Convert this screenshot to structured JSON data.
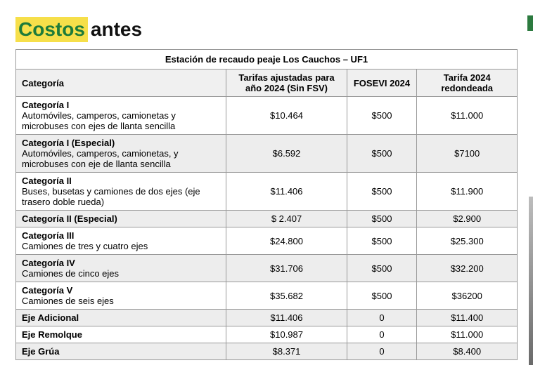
{
  "title": {
    "highlight_text": "Costos",
    "plain_text": " antes",
    "highlight_bg": "#f6df4a",
    "highlight_color": "#1d7b3a",
    "plain_color": "#111111",
    "fontsize": 28
  },
  "table": {
    "caption": "Estación de recaudo peaje Los Cauchos – UF1",
    "columns": [
      "Categoría",
      "Tarifas ajustadas para año 2024 (Sin FSV)",
      "FOSEVI 2024",
      "Tarifa 2024 redondeada"
    ],
    "rows": [
      {
        "name": "Categoría I",
        "desc": "Automóviles, camperos, camionetas y microbuses con ejes de llanta sencilla",
        "c1": "$10.464",
        "c2": "$500",
        "c3": "$11.000",
        "alt": false
      },
      {
        "name": "Categoría I (Especial)",
        "desc": "Automóviles, camperos, camionetas, y microbuses con eje de llanta sencilla",
        "c1": "$6.592",
        "c2": "$500",
        "c3": "$7100",
        "alt": true
      },
      {
        "name": "Categoría II",
        "desc": "Buses, busetas y camiones de dos ejes (eje trasero doble rueda)",
        "c1": "$11.406",
        "c2": "$500",
        "c3": "$11.900",
        "alt": false
      },
      {
        "name": "Categoría II (Especial)",
        "desc": "",
        "c1": "$ 2.407",
        "c2": "$500",
        "c3": "$2.900",
        "alt": true
      },
      {
        "name": "Categoría III",
        "desc": "Camiones de tres y cuatro ejes",
        "c1": "$24.800",
        "c2": "$500",
        "c3": "$25.300",
        "alt": false
      },
      {
        "name": "Categoría IV",
        "desc": "Camiones de cinco ejes",
        "c1": "$31.706",
        "c2": "$500",
        "c3": "$32.200",
        "alt": true
      },
      {
        "name": "Categoría V",
        "desc": "Camiones de seis ejes",
        "c1": "$35.682",
        "c2": "$500",
        "c3": "$36200",
        "alt": false
      },
      {
        "name": "Eje Adicional",
        "desc": "",
        "c1": "$11.406",
        "c2": "0",
        "c3": "$11.400",
        "alt": true
      },
      {
        "name": "Eje Remolque",
        "desc": "",
        "c1": "$10.987",
        "c2": "0",
        "c3": "$11.000",
        "alt": false
      },
      {
        "name": "Eje Grúa",
        "desc": "",
        "c1": "$8.371",
        "c2": "0",
        "c3": "$8.400",
        "alt": true
      }
    ],
    "header_bg": "#f0f0f0",
    "alt_bg": "#ededed",
    "border_color": "#999999"
  }
}
